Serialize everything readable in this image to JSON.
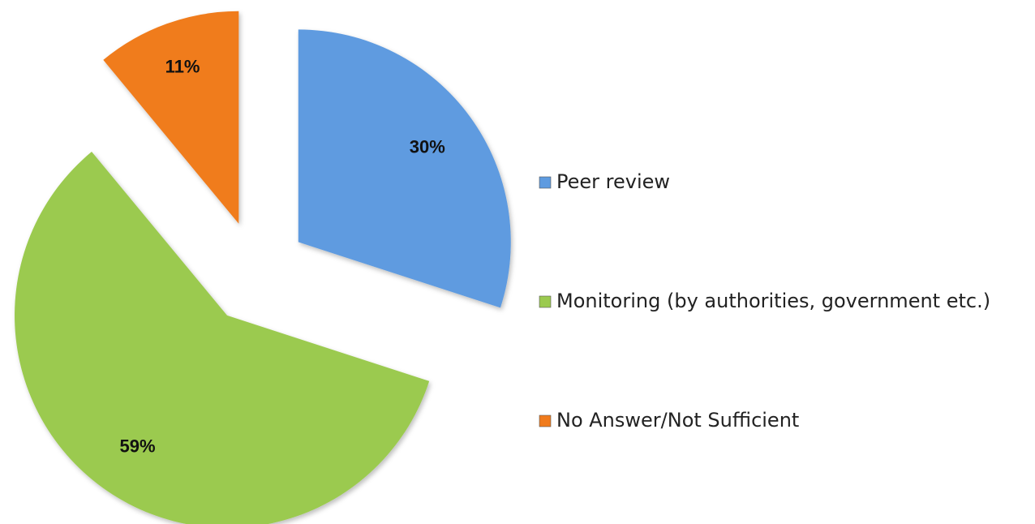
{
  "chart_data": {
    "type": "pie",
    "categories": [
      "Peer review",
      "Monitoring (by authorities, government etc.)",
      "No Answer/Not Sufficient"
    ],
    "values": [
      30,
      59,
      11
    ],
    "value_labels": [
      "30%",
      "59%",
      "11%"
    ],
    "colors": [
      "#5e9be0",
      "#9bca4f",
      "#f07b1c"
    ],
    "legend": "right"
  }
}
